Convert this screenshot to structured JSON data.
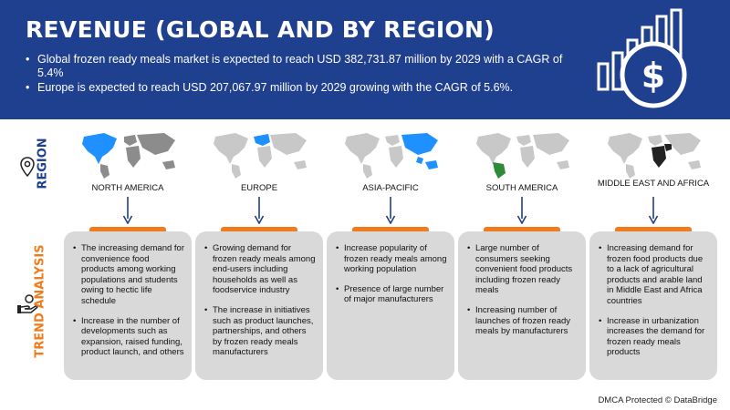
{
  "header": {
    "title": "REVENUE (GLOBAL AND BY REGION)",
    "bullets": [
      "Global frozen ready meals market is expected to reach USD 382,731.87 million by 2029 with a CAGR of 5.4%",
      "Europe is expected to reach USD 207,067.97 million by 2029 growing with the CAGR of 5.6%."
    ]
  },
  "labels": {
    "region": "REGION",
    "trend": "TREND ANALYSIS"
  },
  "colors": {
    "header_bg": "#1f3f8f",
    "accent": "#f07b1d",
    "highlight": "#1e90ff",
    "card_bg": "#d9d9d9"
  },
  "regions": [
    {
      "name": "NORTH AMERICA",
      "points": [
        "The increasing demand for convenience food products among working populations and students owing to hectic life schedule",
        "Increase in the number of developments such as expansion, raised funding, product launch, and others"
      ]
    },
    {
      "name": "EUROPE",
      "points": [
        "Growing demand for frozen ready meals among end-users including households as well as foodservice industry",
        "The increase in initiatives such as product launches, partnerships, and others by frozen ready meals manufacturers"
      ]
    },
    {
      "name": "ASIA-PACIFIC",
      "points": [
        "Increase popularity of frozen ready meals among working population",
        "Presence of large number of major manufacturers"
      ]
    },
    {
      "name": "SOUTH AMERICA",
      "points": [
        "Large number of consumers seeking convenient food products including frozen ready meals",
        "Increasing number of launches of frozen ready meals by manufacturers"
      ]
    },
    {
      "name": "MIDDLE EAST AND AFRICA",
      "points": [
        "Increasing demand for frozen food products due to a lack of agricultural products and arable land in Middle East and Africa countries",
        "Increase in urbanization increases the demand for frozen ready meals products"
      ]
    }
  ],
  "footer": {
    "text": "DMCA Protected © DataBridge"
  }
}
